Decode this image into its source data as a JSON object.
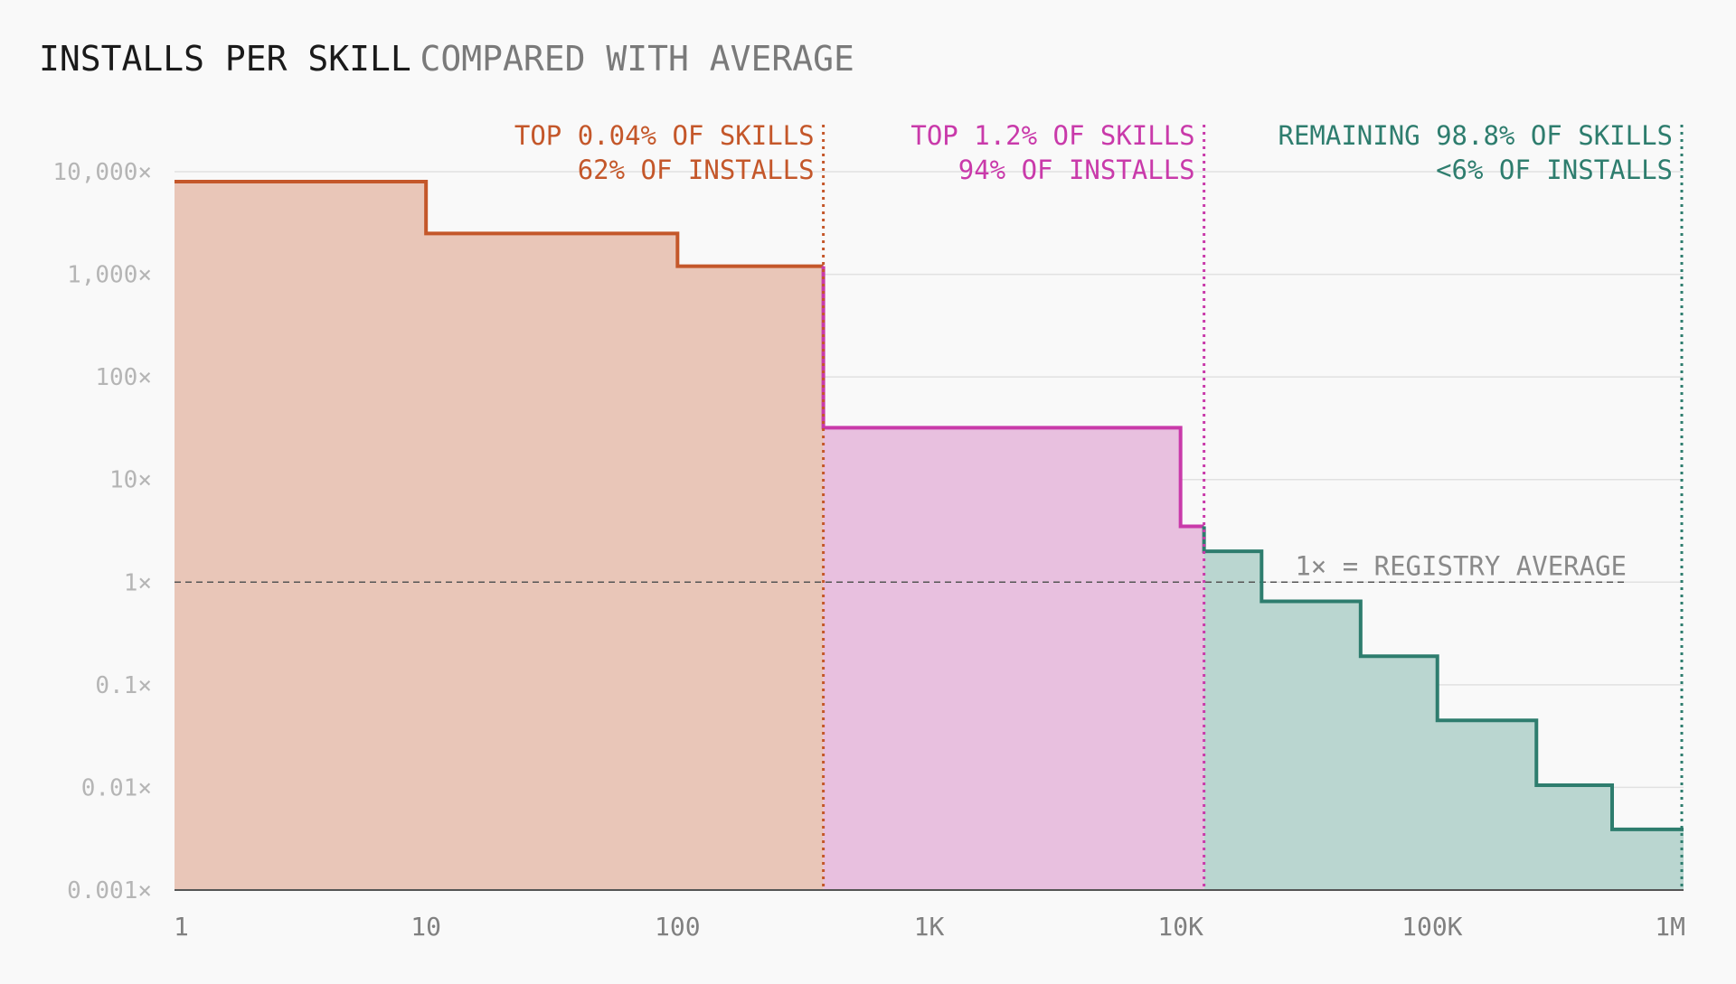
{
  "title": "INSTALLS PER SKILL",
  "subtitle": "COMPARED WITH AVERAGE",
  "chart_data": {
    "type": "area",
    "title": "INSTALLS PER SKILL",
    "subtitle": "COMPARED WITH AVERAGE",
    "xscale": "log",
    "yscale": "log",
    "xlim": [
      1,
      1000000
    ],
    "ylim": [
      0.001,
      10000
    ],
    "x_ticks": [
      1,
      10,
      100,
      1000,
      10000,
      100000,
      1000000
    ],
    "x_tick_labels": [
      "1",
      "10",
      "100",
      "1K",
      "10K",
      "100K",
      "1M"
    ],
    "y_ticks": [
      10000,
      1000,
      100,
      10,
      1,
      0.1,
      0.01,
      0.001
    ],
    "y_tick_labels": [
      "10,000×",
      "1,000×",
      "100×",
      "10×",
      "1×",
      "0.1×",
      "0.01×",
      "0.001×"
    ],
    "grid": true,
    "reference_line": {
      "y": 1,
      "label": "1× = REGISTRY AVERAGE"
    },
    "series": [
      {
        "color": "#c4572a",
        "fill": "#e9c6b8",
        "steps": [
          {
            "x_start": 1,
            "x_end": 10,
            "y": 8000
          },
          {
            "x_start": 10,
            "x_end": 100,
            "y": 2500
          },
          {
            "x_start": 100,
            "x_end": 380,
            "y": 1200
          }
        ]
      },
      {
        "color": "#c93aaa",
        "fill": "#e8c0df",
        "steps": [
          {
            "x_start": 380,
            "x_end": 10000,
            "y": 32
          },
          {
            "x_start": 10000,
            "x_end": 12400,
            "y": 3.5
          }
        ]
      },
      {
        "color": "#2e7d6e",
        "fill": "#bad6d0",
        "steps": [
          {
            "x_start": 12400,
            "x_end": 21000,
            "y": 2.0
          },
          {
            "x_start": 21000,
            "x_end": 52000,
            "y": 0.65
          },
          {
            "x_start": 52000,
            "x_end": 105000,
            "y": 0.19
          },
          {
            "x_start": 105000,
            "x_end": 260000,
            "y": 0.045
          },
          {
            "x_start": 260000,
            "x_end": 520000,
            "y": 0.0105
          },
          {
            "x_start": 520000,
            "x_end": 1000000,
            "y": 0.0039
          }
        ]
      }
    ],
    "segments": [
      {
        "boundary_x": 380,
        "color": "#c4572a",
        "line1": "TOP 0.04% OF SKILLS",
        "line2": "62% OF INSTALLS"
      },
      {
        "boundary_x": 12400,
        "color": "#c93aaa",
        "line1": "TOP 1.2% OF SKILLS",
        "line2": "94% OF INSTALLS"
      },
      {
        "boundary_x": 1000000,
        "color": "#2e7d6e",
        "line1": "REMAINING 98.8% OF SKILLS",
        "line2": "<6% OF INSTALLS"
      }
    ],
    "colors": {
      "grid": "#e1e1e1",
      "axis": "#555555",
      "reference": "#555555"
    }
  }
}
